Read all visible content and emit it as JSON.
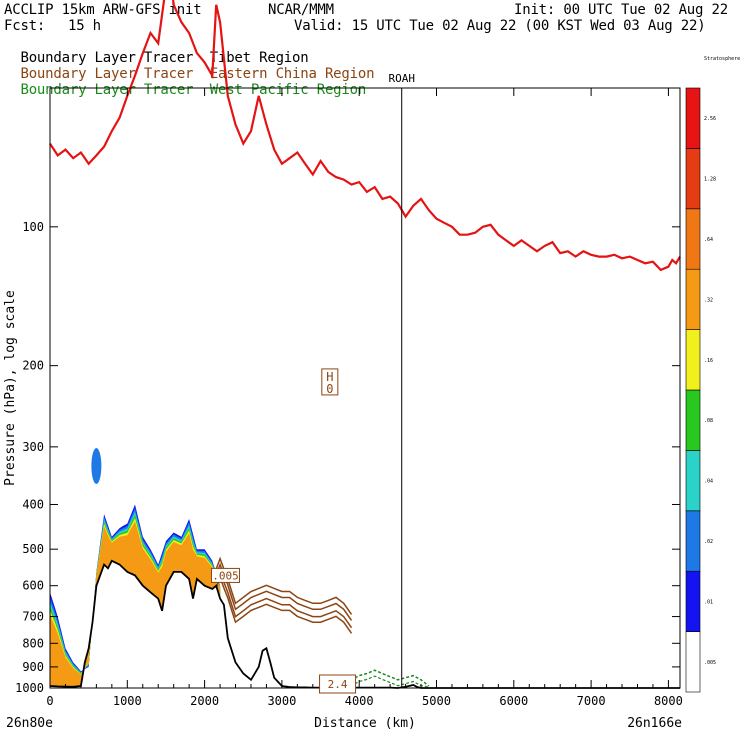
{
  "header": {
    "model": "ACCLIP 15km ARW-GFS init",
    "org": "NCAR/MMM",
    "init": "Init: 00 UTC Tue 02 Aug 22",
    "fcst_label": "Fcst:",
    "fcst_value": "15 h",
    "valid": "Valid: 15 UTC Tue 02 Aug 22 (00 KST Wed 03 Aug 22)"
  },
  "legend": [
    {
      "prefix": "Boundary Layer Tracer",
      "region": "Tibet Region",
      "color": "#000000"
    },
    {
      "prefix": "Boundary Layer Tracer",
      "region": "Eastern China Region",
      "color": "#8B4513"
    },
    {
      "prefix": "Boundary Layer Tracer",
      "region": "West Pacific Region",
      "color": "#1a8a1a"
    }
  ],
  "chart_data": {
    "type": "area",
    "xlabel": "Distance (km)",
    "ylabel": "Pressure (hPa), log scale",
    "xlim": [
      0,
      8150
    ],
    "ylim": [
      1000,
      50
    ],
    "y_scale": "log",
    "x_ticks": [
      0,
      1000,
      2000,
      3000,
      4000,
      5000,
      6000,
      7000,
      8000
    ],
    "x_tick_labels": [
      "0",
      "1000",
      "2000",
      "3000",
      "4000",
      "5000",
      "6000",
      "7000",
      "8000"
    ],
    "y_ticks": [
      100,
      200,
      300,
      400,
      500,
      600,
      700,
      800,
      900,
      1000
    ],
    "y_tick_labels": [
      "100",
      "200",
      "300",
      "400",
      "500",
      "600",
      "700",
      "800",
      "900",
      "1000"
    ],
    "start_label": "26n80e",
    "end_label": "26n166e",
    "station": {
      "name": "ROAH",
      "x": 4550
    },
    "high_marker": {
      "letter": "H",
      "value": "0",
      "x": 3620,
      "p": 218
    },
    "contour_labels": [
      {
        "text": ".005",
        "x": 2270,
        "p": 570
      },
      {
        "text": "2.4",
        "x": 3720,
        "p": 1000
      }
    ],
    "tropopause": {
      "color": "#e41414",
      "x": [
        0,
        100,
        200,
        300,
        400,
        500,
        600,
        700,
        800,
        900,
        1000,
        1100,
        1200,
        1300,
        1400,
        1500,
        1550,
        1600,
        1700,
        1800,
        1900,
        2000,
        2100,
        2150,
        2200,
        2300,
        2400,
        2500,
        2600,
        2700,
        2800,
        2900,
        3000,
        3100,
        3200,
        3300,
        3400,
        3500,
        3600,
        3700,
        3800,
        3900,
        4000,
        4100,
        4200,
        4300,
        4400,
        4500,
        4600,
        4700,
        4800,
        4900,
        5000,
        5100,
        5200,
        5300,
        5400,
        5500,
        5600,
        5700,
        5800,
        5900,
        6000,
        6100,
        6200,
        6300,
        6400,
        6500,
        6600,
        6700,
        6800,
        6900,
        7000,
        7100,
        7200,
        7300,
        7400,
        7500,
        7600,
        7700,
        7800,
        7900,
        8000,
        8050,
        8100,
        8150
      ],
      "p": [
        66,
        70,
        68,
        71,
        69,
        73,
        70,
        67,
        62,
        58,
        52,
        47,
        42,
        38,
        40,
        30,
        28,
        33,
        36,
        38,
        42,
        44,
        47,
        33,
        36,
        52,
        60,
        66,
        62,
        52,
        60,
        68,
        73,
        71,
        69,
        73,
        77,
        72,
        76,
        78,
        79,
        81,
        80,
        84,
        82,
        87,
        86,
        89,
        95,
        90,
        87,
        92,
        96,
        98,
        100,
        104,
        104,
        103,
        100,
        99,
        104,
        107,
        110,
        107,
        110,
        113,
        110,
        108,
        114,
        113,
        116,
        113,
        115,
        116,
        116,
        115,
        117,
        116,
        118,
        120,
        119,
        124,
        122,
        118,
        120,
        116
      ]
    },
    "series": [
      {
        "name": "Tibet Region",
        "color": "#000000",
        "x": [
          0,
          100,
          200,
          300,
          400,
          450,
          500,
          550,
          600,
          700,
          750,
          800,
          900,
          1000,
          1100,
          1200,
          1300,
          1400,
          1450,
          1500,
          1600,
          1700,
          1800,
          1850,
          1900,
          2000,
          2100,
          2150,
          2200,
          2250,
          2300,
          2400,
          2500,
          2600,
          2700,
          2750,
          2800,
          2850,
          2900,
          3000,
          3100,
          3200,
          3300,
          3400,
          3500,
          3600,
          3700,
          3800,
          3900,
          4000,
          4100,
          4200,
          4300,
          4400,
          4500,
          4600,
          4700,
          4750,
          4800,
          4900,
          5000,
          6000,
          7000,
          8000,
          8150
        ],
        "p": [
          990,
          992,
          993,
          994,
          990,
          880,
          820,
          720,
          600,
          540,
          550,
          530,
          540,
          560,
          570,
          600,
          620,
          640,
          680,
          600,
          560,
          560,
          580,
          640,
          580,
          600,
          610,
          600,
          640,
          660,
          780,
          880,
          930,
          960,
          900,
          830,
          820,
          880,
          950,
          990,
          995,
          997,
          997,
          998,
          998,
          998,
          998,
          998,
          998,
          998,
          998,
          998,
          998,
          998,
          1000,
          994,
          985,
          995,
          1000,
          1000,
          1000,
          1000,
          1000,
          1000,
          1000
        ]
      },
      {
        "name": "Eastern China Region",
        "color": "#8B4513",
        "x": [
          2150,
          2200,
          2250,
          2300,
          2350,
          2400,
          2500,
          2600,
          2700,
          2800,
          2900,
          3000,
          3100,
          3200,
          3300,
          3400,
          3500,
          3600,
          3700,
          3800,
          3900
        ],
        "p": [
          590,
          560,
          590,
          620,
          660,
          700,
          680,
          660,
          650,
          640,
          650,
          660,
          660,
          680,
          690,
          700,
          700,
          690,
          680,
          700,
          740
        ]
      },
      {
        "name": "West Pacific Region",
        "color": "#1a8a1a",
        "x": [
          3700,
          3800,
          3900,
          4000,
          4100,
          4200,
          4300,
          4400,
          4500,
          4600,
          4700,
          4800,
          4900
        ],
        "p": [
          960,
          950,
          960,
          940,
          930,
          915,
          930,
          945,
          960,
          950,
          940,
          960,
          990
        ]
      }
    ],
    "tracer_band_top": {
      "x": [
        0,
        100,
        200,
        300,
        400,
        500,
        600,
        700,
        800,
        900,
        1000,
        1100,
        1200,
        1300,
        1400,
        1500,
        1600,
        1700,
        1800,
        1900,
        2000,
        2100,
        2200
      ],
      "p": [
        620,
        700,
        820,
        880,
        920,
        900,
        560,
        420,
        470,
        450,
        440,
        400,
        470,
        500,
        540,
        480,
        460,
        470,
        430,
        500,
        500,
        530,
        600
      ]
    },
    "colorbar": {
      "colors": [
        "#ffffff",
        "#1414f0",
        "#1e78e6",
        "#2ad2c8",
        "#28c81e",
        "#f0f01e",
        "#f59a14",
        "#f07814",
        "#e63c14",
        "#e61414"
      ],
      "labels": [
        "",
        "0.005",
        ".01",
        ".02",
        ".04",
        ".08",
        ".16",
        ".32",
        ".64",
        "1.28",
        "2.56",
        "Stratosphere"
      ],
      "display_labels": [
        ".005",
        ".01",
        ".02",
        ".04",
        ".08",
        ".16",
        ".32",
        ".64",
        "1.28",
        "2.56",
        "Stratosphere"
      ]
    }
  }
}
